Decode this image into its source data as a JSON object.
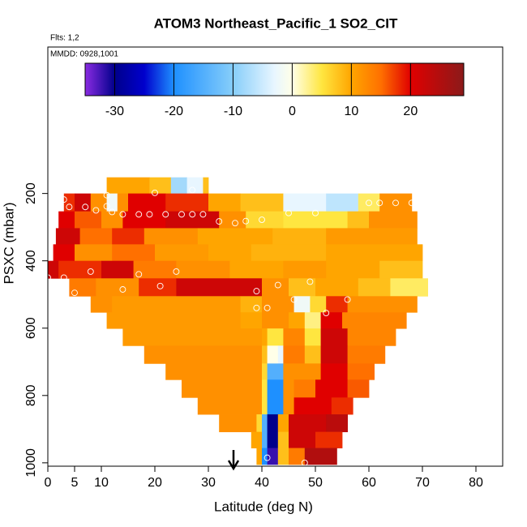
{
  "chart_data": {
    "type": "curtain",
    "title": "ATOM3 Northeast_Pacific_1 SO2_CIT",
    "flights": "Flts: 1,2",
    "dates": "MMDD: 0928,1001",
    "xlabel": "Latitude (deg N)",
    "ylabel": "PSXC (mbar)",
    "xlim": [
      0,
      85
    ],
    "xticks": [
      0,
      5,
      10,
      20,
      30,
      40,
      50,
      60,
      70,
      80
    ],
    "ylim": [
      -235,
      1010
    ],
    "yticks": [
      200,
      400,
      600,
      800,
      1000
    ],
    "colorbar_lim": [
      -35,
      29
    ],
    "colorbar_ticks": [
      -30,
      -20,
      -10,
      0,
      10,
      20
    ],
    "colorscale": [
      [
        -35,
        "#8a2be2"
      ],
      [
        -30,
        "#00008b"
      ],
      [
        -25,
        "#0000cd"
      ],
      [
        -20,
        "#1e90ff"
      ],
      [
        -10,
        "#87cefa"
      ],
      [
        -3,
        "#e8f6ff"
      ],
      [
        0,
        "#ffffe8"
      ],
      [
        5,
        "#ffe640"
      ],
      [
        10,
        "#ffa500"
      ],
      [
        15,
        "#ff7000"
      ],
      [
        20,
        "#e00000"
      ],
      [
        29,
        "#8b1a1a"
      ]
    ],
    "rows": [
      {
        "p": [
          152,
          200
        ],
        "cells": [
          [
            11,
            19,
            10
          ],
          [
            19,
            23,
            8
          ],
          [
            23,
            26,
            -8
          ],
          [
            26,
            29,
            -3
          ],
          [
            29,
            30,
            8
          ]
        ]
      },
      {
        "p": [
          200,
          253
        ],
        "cells": [
          [
            3,
            5,
            18
          ],
          [
            5,
            8,
            22
          ],
          [
            8,
            11,
            12
          ],
          [
            11,
            13,
            -2
          ],
          [
            13,
            15,
            12
          ],
          [
            15,
            22,
            20
          ],
          [
            22,
            30,
            18
          ],
          [
            30,
            36,
            10
          ],
          [
            36,
            44,
            8
          ],
          [
            44,
            52,
            -3
          ],
          [
            52,
            58,
            -6
          ],
          [
            58,
            62,
            4
          ],
          [
            62,
            68,
            12
          ]
        ]
      },
      {
        "p": [
          253,
          303
        ],
        "cells": [
          [
            2,
            5,
            20
          ],
          [
            5,
            10,
            16
          ],
          [
            10,
            14,
            12
          ],
          [
            14,
            22,
            20
          ],
          [
            22,
            32,
            22
          ],
          [
            32,
            37,
            12
          ],
          [
            37,
            44,
            6
          ],
          [
            44,
            56,
            5
          ],
          [
            56,
            60,
            8
          ],
          [
            60,
            69,
            12
          ]
        ]
      },
      {
        "p": [
          303,
          351
        ],
        "cells": [
          [
            1.5,
            6,
            22
          ],
          [
            6,
            12,
            15
          ],
          [
            12,
            18,
            18
          ],
          [
            18,
            28,
            12
          ],
          [
            28,
            35,
            10
          ],
          [
            35,
            42,
            10
          ],
          [
            42,
            52,
            9
          ],
          [
            52,
            69,
            11
          ]
        ]
      },
      {
        "p": [
          351,
          400
        ],
        "cells": [
          [
            1,
            5,
            20
          ],
          [
            5,
            12,
            12
          ],
          [
            12,
            20,
            15
          ],
          [
            20,
            30,
            11
          ],
          [
            30,
            38,
            10
          ],
          [
            38,
            52,
            9
          ],
          [
            52,
            70,
            10
          ]
        ]
      },
      {
        "p": [
          400,
          452
        ],
        "cells": [
          [
            0,
            2,
            22
          ],
          [
            2,
            10,
            18
          ],
          [
            10,
            16,
            22
          ],
          [
            16,
            24,
            14
          ],
          [
            24,
            34,
            12
          ],
          [
            34,
            44,
            10
          ],
          [
            44,
            52,
            11
          ],
          [
            52,
            62,
            10
          ],
          [
            62,
            70,
            8
          ]
        ]
      },
      {
        "p": [
          452,
          505
        ],
        "cells": [
          [
            4,
            9,
            14
          ],
          [
            9,
            17,
            12
          ],
          [
            17,
            24,
            18
          ],
          [
            24,
            40,
            22
          ],
          [
            40,
            45,
            12
          ],
          [
            45,
            50,
            8
          ],
          [
            50,
            58,
            10
          ],
          [
            58,
            64,
            8
          ],
          [
            64,
            71,
            4
          ]
        ]
      },
      {
        "p": [
          505,
          553
        ],
        "cells": [
          [
            8,
            12,
            12
          ],
          [
            12,
            36,
            11
          ],
          [
            36,
            40,
            9
          ],
          [
            40,
            46,
            12
          ],
          [
            46,
            49,
            -2
          ],
          [
            49,
            52,
            6
          ],
          [
            52,
            56,
            18
          ],
          [
            56,
            69,
            12
          ]
        ]
      },
      {
        "p": [
          553,
          601
        ],
        "cells": [
          [
            11,
            36,
            11
          ],
          [
            36,
            40,
            10
          ],
          [
            40,
            45,
            12
          ],
          [
            45,
            48,
            10
          ],
          [
            48,
            51,
            3
          ],
          [
            51,
            55,
            20
          ],
          [
            55,
            67,
            13
          ]
        ]
      },
      {
        "p": [
          601,
          652
        ],
        "cells": [
          [
            14,
            40,
            11
          ],
          [
            40,
            41,
            10
          ],
          [
            41,
            44,
            5
          ],
          [
            44,
            48,
            13
          ],
          [
            48,
            51,
            5
          ],
          [
            51,
            56,
            22
          ],
          [
            56,
            65,
            13
          ]
        ]
      },
      {
        "p": [
          652,
          705
        ],
        "cells": [
          [
            18,
            40,
            12
          ],
          [
            40,
            41,
            8
          ],
          [
            41,
            43,
            0
          ],
          [
            43,
            44,
            -3
          ],
          [
            44,
            48,
            14
          ],
          [
            48,
            51,
            8
          ],
          [
            51,
            56,
            22
          ],
          [
            56,
            63,
            14
          ]
        ]
      },
      {
        "p": [
          705,
          753
        ],
        "cells": [
          [
            22,
            40,
            12
          ],
          [
            40,
            41,
            6
          ],
          [
            41,
            44,
            -15
          ],
          [
            44,
            46,
            12
          ],
          [
            46,
            51,
            12
          ],
          [
            51,
            56,
            20
          ],
          [
            56,
            61,
            15
          ]
        ]
      },
      {
        "p": [
          753,
          806
        ],
        "cells": [
          [
            25,
            40,
            12
          ],
          [
            40,
            41,
            5
          ],
          [
            41,
            44,
            -20
          ],
          [
            44,
            46,
            12
          ],
          [
            46,
            50,
            14
          ],
          [
            50,
            56,
            20
          ],
          [
            56,
            60,
            16
          ]
        ]
      },
      {
        "p": [
          806,
          856
        ],
        "cells": [
          [
            28,
            40,
            12
          ],
          [
            40,
            41,
            5
          ],
          [
            41,
            44,
            -20
          ],
          [
            44,
            46,
            12
          ],
          [
            46,
            53,
            20
          ],
          [
            53,
            57,
            18
          ]
        ]
      },
      {
        "p": [
          856,
          908
        ],
        "cells": [
          [
            32,
            39,
            12
          ],
          [
            39,
            40,
            6
          ],
          [
            40,
            41,
            -15
          ],
          [
            41,
            43,
            -30
          ],
          [
            43,
            45,
            10
          ],
          [
            45,
            52,
            22
          ],
          [
            52,
            56,
            24
          ]
        ]
      },
      {
        "p": [
          908,
          956
        ],
        "cells": [
          [
            38,
            40,
            10
          ],
          [
            40,
            41,
            -15
          ],
          [
            41,
            43,
            -30
          ],
          [
            43,
            45,
            8
          ],
          [
            45,
            50,
            22
          ],
          [
            50,
            55,
            18
          ]
        ]
      },
      {
        "p": [
          956,
          1005
        ],
        "cells": [
          [
            39,
            40,
            10
          ],
          [
            40,
            41,
            -20
          ],
          [
            41,
            43,
            -32
          ],
          [
            43,
            45,
            8
          ],
          [
            45,
            48,
            14
          ],
          [
            48,
            54,
            25
          ]
        ]
      }
    ],
    "samples": {
      "lat": [
        3,
        4,
        7,
        9,
        11,
        11,
        12,
        14,
        17,
        19,
        22,
        25,
        27,
        29,
        32,
        35,
        37,
        40,
        45,
        50,
        60,
        62,
        65,
        68,
        20,
        27,
        0,
        3,
        5,
        8,
        14,
        17,
        21,
        24,
        39,
        43,
        49,
        39,
        41,
        46,
        56,
        52,
        41,
        48
      ],
      "p": [
        218,
        240,
        240,
        250,
        238,
        205,
        255,
        262,
        262,
        262,
        262,
        262,
        262,
        262,
        283,
        288,
        282,
        278,
        258,
        258,
        228,
        228,
        228,
        228,
        198,
        190,
        450,
        450,
        495,
        432,
        485,
        440,
        475,
        432,
        490,
        472,
        462,
        540,
        540,
        515,
        515,
        555,
        985,
        1000
      ]
    }
  }
}
